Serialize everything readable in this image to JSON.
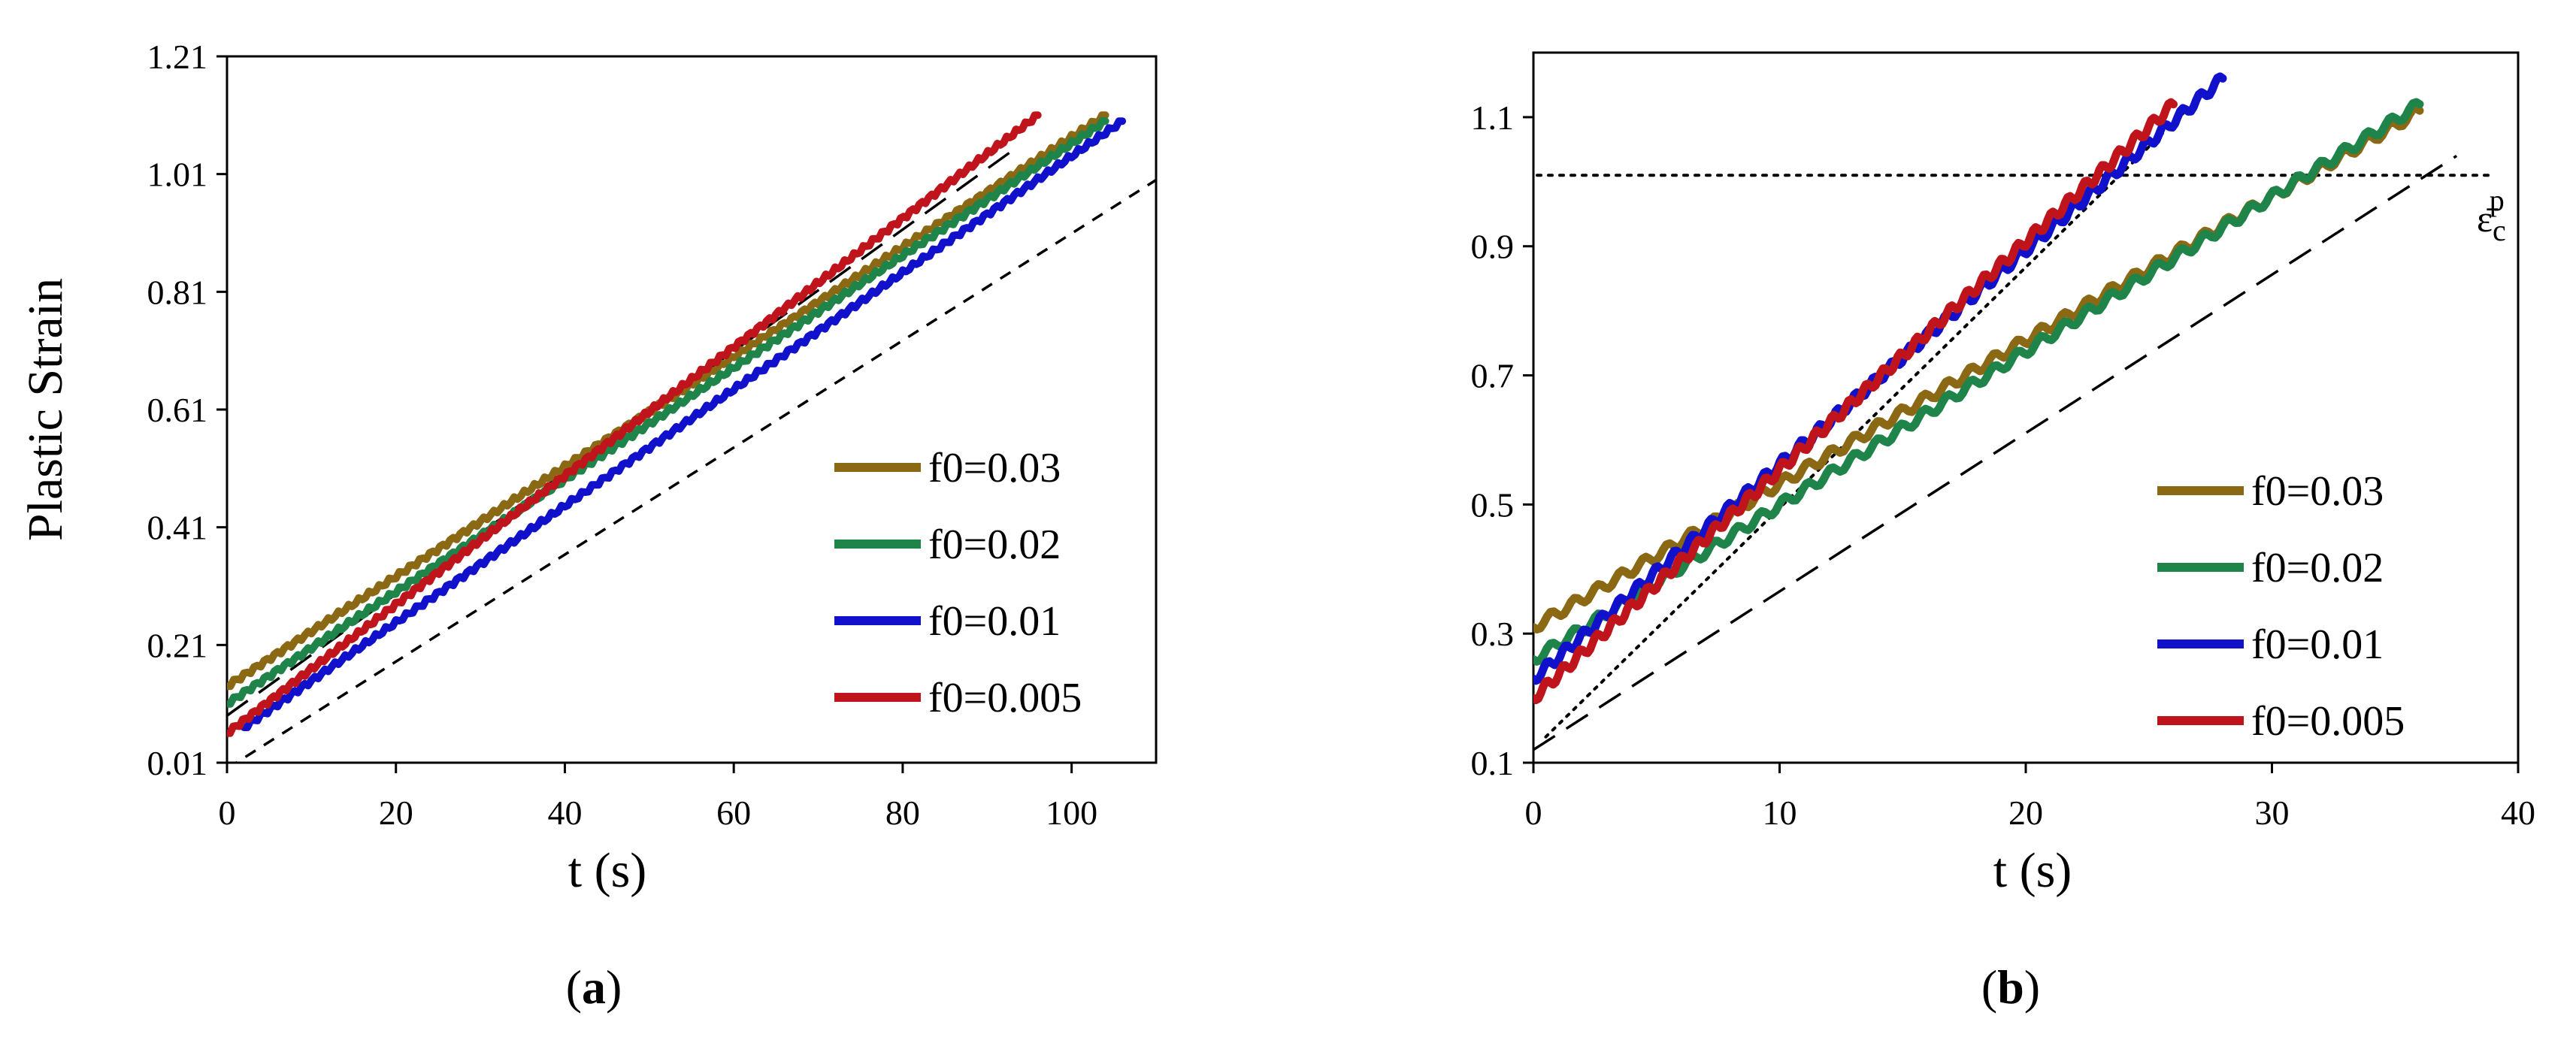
{
  "chart_data": [
    {
      "type": "line",
      "panel": "a",
      "caption": {
        "open": "(",
        "label": "a",
        "close": ")"
      },
      "xlabel": "t (s)",
      "ylabel": "Plastic Strain",
      "xlim": [
        0,
        110
      ],
      "ylim": [
        0.01,
        1.21
      ],
      "xticks": [
        "0",
        "20",
        "40",
        "60",
        "80",
        "100"
      ],
      "yticks": [
        "0.01",
        "0.21",
        "0.41",
        "0.61",
        "0.81",
        "1.01",
        "1.21"
      ],
      "legend_position": "bottom-right",
      "series": [
        {
          "name": "f0=0.03",
          "color": "#8B6914",
          "x": [
            0,
            104
          ],
          "y": [
            0.14,
            1.11
          ]
        },
        {
          "name": "f0=0.02",
          "color": "#1E8449",
          "x": [
            0,
            104
          ],
          "y": [
            0.11,
            1.1
          ]
        },
        {
          "name": "f0=0.01",
          "color": "#1111CC",
          "x": [
            2,
            106
          ],
          "y": [
            0.07,
            1.1
          ]
        },
        {
          "name": "f0=0.005",
          "color": "#C0141C",
          "x": [
            0,
            96
          ],
          "y": [
            0.06,
            1.11
          ]
        }
      ],
      "reference_lines": [
        {
          "style": "long-dash",
          "x": [
            0,
            93
          ],
          "y": [
            0.09,
            1.05
          ]
        },
        {
          "style": "short-dash",
          "x": [
            0,
            110
          ],
          "y": [
            0.0,
            1.0
          ]
        }
      ]
    },
    {
      "type": "line",
      "panel": "b",
      "caption": {
        "open": "(",
        "label": "b",
        "close": ")"
      },
      "xlabel": "t (s)",
      "ylabel": "",
      "xlim": [
        0,
        40
      ],
      "ylim": [
        0.1,
        1.2
      ],
      "xticks": [
        "0",
        "10",
        "20",
        "30",
        "40"
      ],
      "yticks": [
        "0.1",
        "0.3",
        "0.5",
        "0.7",
        "0.9",
        "1.1"
      ],
      "legend_position": "bottom-right",
      "annotation": {
        "symbol": "ε̄",
        "sub": "c",
        "sup": "p",
        "y": 1.01
      },
      "series": [
        {
          "name": "f0=0.03",
          "color": "#8B6914",
          "x": [
            0,
            36
          ],
          "y": [
            0.31,
            1.11
          ]
        },
        {
          "name": "f0=0.02",
          "color": "#1E8449",
          "x": [
            0,
            36
          ],
          "y": [
            0.26,
            1.12
          ]
        },
        {
          "name": "f0=0.01",
          "color": "#1111CC",
          "x": [
            0,
            28
          ],
          "y": [
            0.23,
            1.16
          ]
        },
        {
          "name": "f0=0.005",
          "color": "#C0141C",
          "x": [
            0,
            26
          ],
          "y": [
            0.2,
            1.12
          ]
        }
      ],
      "reference_lines": [
        {
          "style": "dotted-horizontal",
          "x": [
            0,
            40
          ],
          "y": [
            1.01,
            1.01
          ]
        },
        {
          "style": "dotted",
          "x": [
            0.5,
            26.5
          ],
          "y": [
            0.14,
            1.11
          ]
        },
        {
          "style": "long-dash",
          "x": [
            0,
            37.5
          ],
          "y": [
            0.12,
            1.04
          ]
        }
      ]
    }
  ]
}
